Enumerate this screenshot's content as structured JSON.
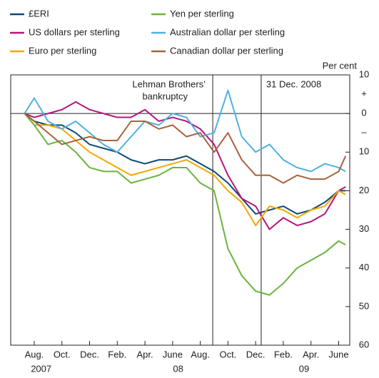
{
  "chart_data": {
    "type": "line",
    "y_axis_label": "Per cent",
    "sign_labels": [
      {
        "value": 5,
        "label": "+"
      },
      {
        "value": -5,
        "label": "–"
      }
    ],
    "events": [
      {
        "x": 12.9,
        "label": [
          "Lehman Brothers’",
          "bankruptcy"
        ]
      },
      {
        "x": 16.4,
        "label": [
          "31 Dec. 2008"
        ]
      }
    ],
    "x": [
      -0.7,
      0,
      1,
      2,
      3,
      4,
      5,
      6,
      7,
      8,
      9,
      10,
      11,
      12,
      13,
      14,
      15,
      16,
      17,
      18,
      19,
      20,
      21,
      22,
      22.5
    ],
    "series": [
      {
        "name": "£ERI",
        "color": "#0a4a7a",
        "values": [
          0,
          -2,
          -3,
          -3,
          -5,
          -8,
          -9,
          -10,
          -12,
          -13,
          -12,
          -12,
          -11,
          -13,
          -15,
          -18,
          -22,
          -26,
          -25,
          -24,
          -26,
          -25,
          -23,
          -20,
          -20
        ]
      },
      {
        "name": "US dollars per sterling",
        "color": "#b5157d",
        "values": [
          0,
          -1,
          0,
          1,
          3,
          1,
          0,
          -1,
          -1,
          1,
          -2,
          -1,
          -2,
          -4,
          -8,
          -16,
          -22,
          -24,
          -30,
          -27,
          -29,
          -28,
          -26,
          -20,
          -19
        ]
      },
      {
        "name": "Euro per sterling",
        "color": "#f5a800",
        "values": [
          0,
          -3,
          -3,
          -4,
          -7,
          -10,
          -12,
          -14,
          -16,
          -15,
          -14,
          -13,
          -12,
          -14,
          -16,
          -20,
          -23,
          -29,
          -24,
          -25,
          -27,
          -25,
          -24,
          -20,
          -21
        ]
      },
      {
        "name": "Yen per sterling",
        "color": "#6ab43e",
        "values": [
          0,
          -3,
          -8,
          -7,
          -10,
          -14,
          -15,
          -15,
          -18,
          -17,
          -16,
          -14,
          -14,
          -18,
          -20,
          -35,
          -42,
          -46,
          -47,
          -44,
          -40,
          -38,
          -36,
          -33,
          -34
        ]
      },
      {
        "name": "Australian dollar per sterling",
        "color": "#4fb0e0",
        "values": [
          0,
          4,
          -2,
          -4,
          -2,
          -5,
          -8,
          -10,
          -6,
          -2,
          -3,
          0,
          -1,
          -6,
          -5,
          6,
          -6,
          -10,
          -8,
          -12,
          -14,
          -15,
          -13,
          -14,
          -15
        ]
      },
      {
        "name": "Canadian dollar per sterling",
        "color": "#a7633b",
        "values": [
          0,
          -2,
          -5,
          -8,
          -7,
          -6,
          -7,
          -7,
          -2,
          -2,
          -4,
          -3,
          -6,
          -5,
          -10,
          -5,
          -12,
          -16,
          -16,
          -18,
          -16,
          -17,
          -17,
          -15,
          -11
        ]
      }
    ],
    "xlim": [
      -1.7,
      22.8
    ],
    "xticks": [
      {
        "value": 0,
        "label": "Aug."
      },
      {
        "value": 2,
        "label": "Oct."
      },
      {
        "value": 4,
        "label": "Dec."
      },
      {
        "value": 6,
        "label": "Feb."
      },
      {
        "value": 8,
        "label": "Apr."
      },
      {
        "value": 10,
        "label": "June"
      },
      {
        "value": 12,
        "label": "Aug."
      },
      {
        "value": 14,
        "label": "Oct."
      },
      {
        "value": 16,
        "label": "Dec."
      },
      {
        "value": 18,
        "label": "Feb."
      },
      {
        "value": 20,
        "label": "Apr."
      },
      {
        "value": 22,
        "label": "June"
      }
    ],
    "year_labels": [
      {
        "value": 0.5,
        "label": "2007"
      },
      {
        "value": 10.4,
        "label": "08"
      },
      {
        "value": 19.5,
        "label": "09"
      }
    ],
    "ylim": [
      -60,
      10
    ],
    "yticks": [
      {
        "value": 10,
        "label": "10"
      },
      0,
      {
        "value": -10,
        "label": "10"
      },
      {
        "value": -20,
        "label": "20"
      },
      {
        "value": -30,
        "label": "30"
      },
      {
        "value": -40,
        "label": "40"
      },
      {
        "value": -50,
        "label": "50"
      },
      {
        "value": -60,
        "label": "60"
      }
    ],
    "legend": "top"
  }
}
